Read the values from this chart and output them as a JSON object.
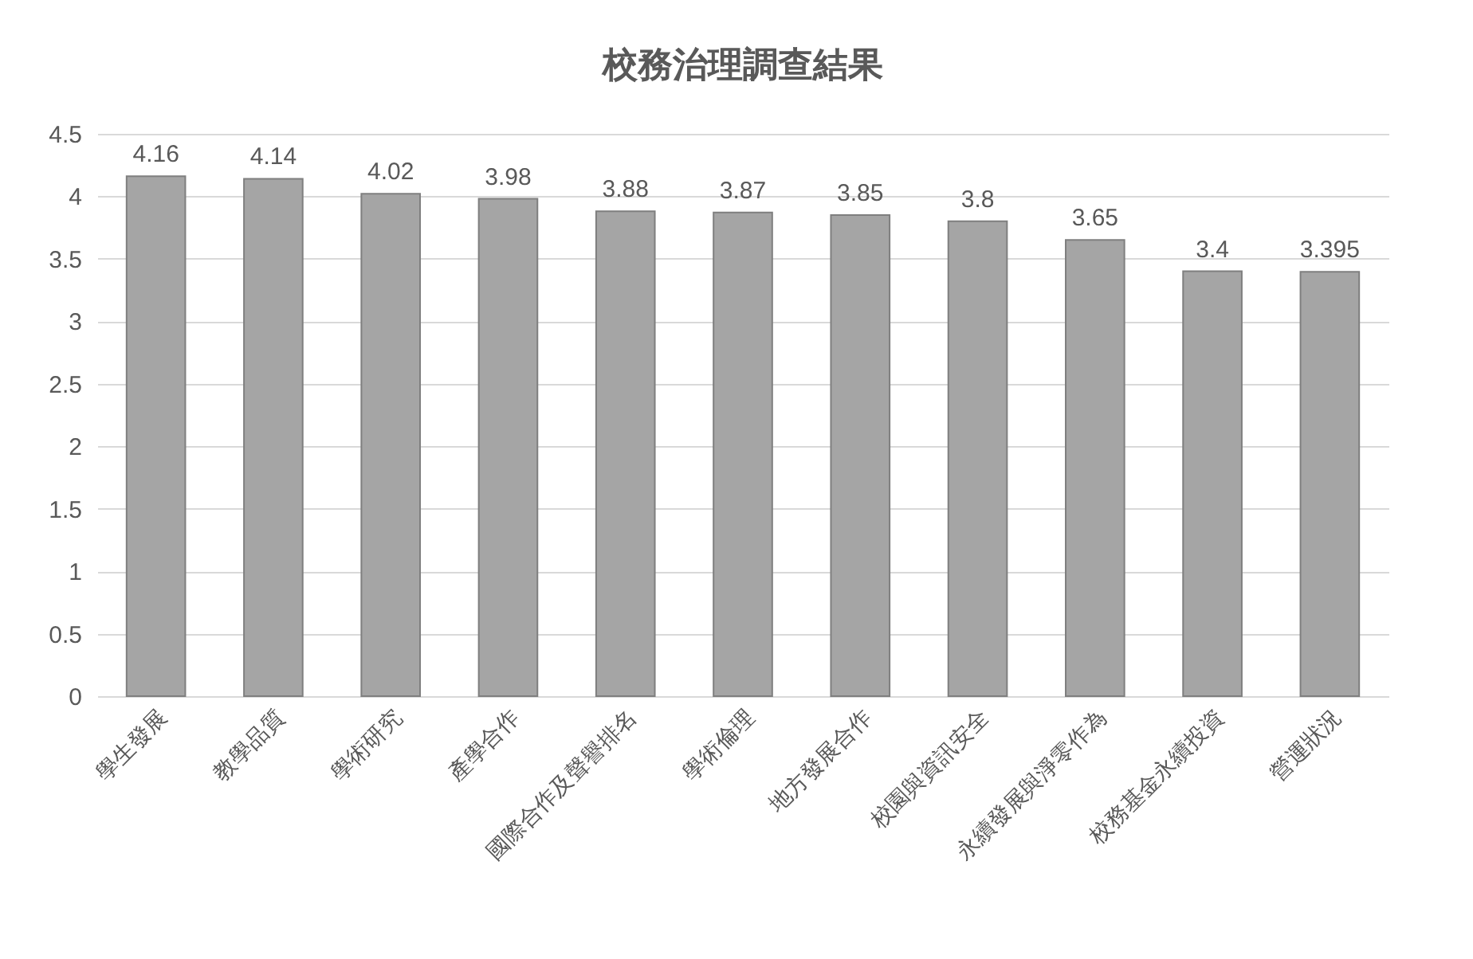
{
  "chart_data": {
    "type": "bar",
    "title": "校務治理調查結果",
    "categories": [
      "學生發展",
      "教學品質",
      "學術研究",
      "產學合作",
      "國際合作及聲譽排名",
      "學術倫理",
      "地方發展合作",
      "校園與資訊安全",
      "永續發展與淨零作為",
      "校務基金永續投資",
      "營運狀況"
    ],
    "values": [
      4.16,
      4.14,
      4.02,
      3.98,
      3.88,
      3.87,
      3.85,
      3.8,
      3.65,
      3.4,
      3.395
    ],
    "color": "#a5a5a5",
    "ylim": [
      0,
      4.5
    ],
    "yticks": [
      0,
      0.5,
      1,
      1.5,
      2,
      2.5,
      3,
      3.5,
      4,
      4.5
    ],
    "grid": "y",
    "data_labels": true
  }
}
